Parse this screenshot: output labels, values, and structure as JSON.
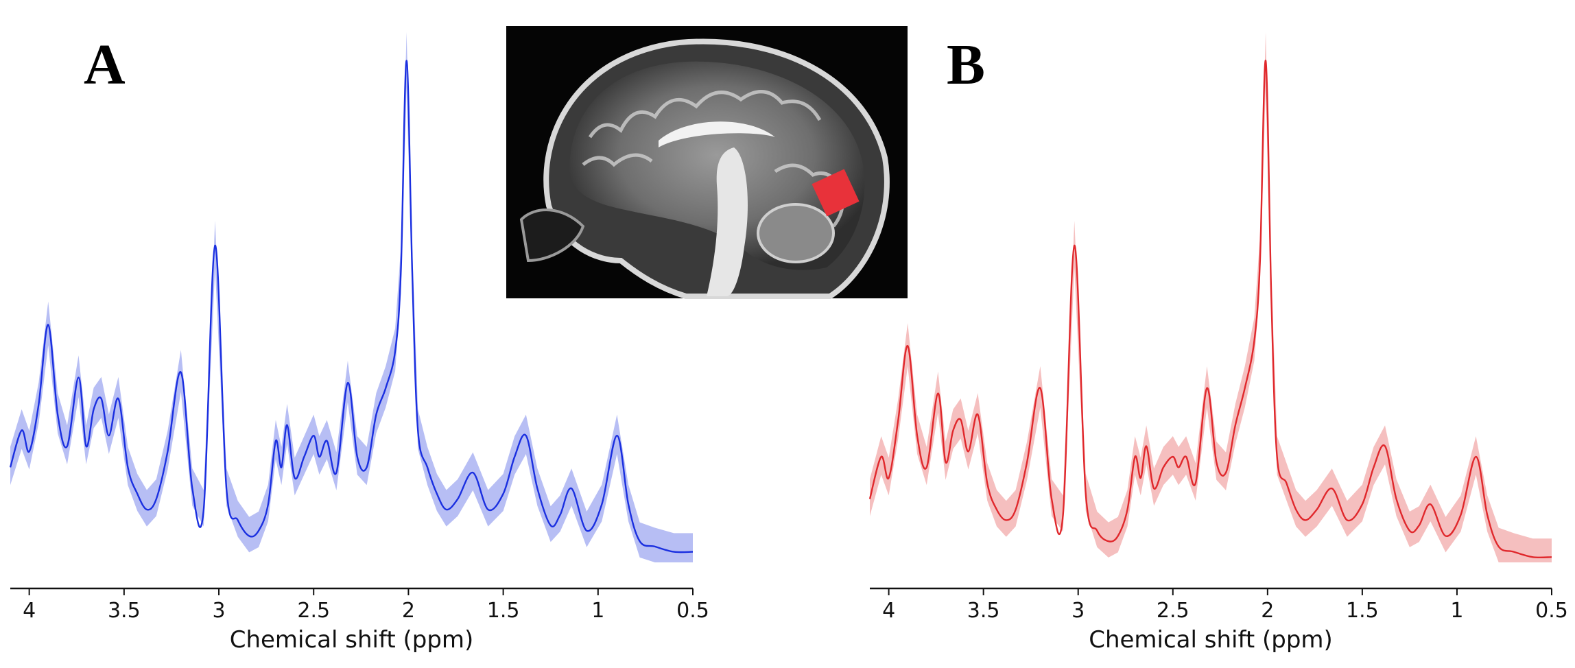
{
  "figure": {
    "panel_labels": [
      "A",
      "B"
    ],
    "inset_description_icon": "sagittal-brain-mri-icon",
    "voxel_color": "#e8323a"
  },
  "chart_data": [
    {
      "type": "line",
      "panel": "A",
      "color": "#1a2fe0",
      "band_color": "#9fa8f0",
      "xlabel": "Chemical shift (ppm)",
      "ylabel": "",
      "xlim": [
        4.1,
        0.5
      ],
      "x_reversed": true,
      "ylim": [
        0,
        1
      ],
      "xticks": [
        4,
        3.5,
        3,
        2.5,
        2,
        1.5,
        1,
        0.5
      ],
      "xtick_labels": [
        "4",
        "3.5",
        "3",
        "2.5",
        "2",
        "1.5",
        "1",
        "0.5"
      ],
      "grid": false,
      "series": [
        {
          "x": [
            4.1,
            4.04,
            4.0,
            3.95,
            3.9,
            3.85,
            3.8,
            3.74,
            3.7,
            3.66,
            3.62,
            3.58,
            3.53,
            3.48,
            3.43,
            3.38,
            3.33,
            3.27,
            3.2,
            3.14,
            3.08,
            3.02,
            2.96,
            2.9,
            2.84,
            2.79,
            2.74,
            2.7,
            2.67,
            2.64,
            2.6,
            2.55,
            2.5,
            2.47,
            2.43,
            2.38,
            2.32,
            2.27,
            2.22,
            2.17,
            2.12,
            2.07,
            2.04,
            2.01,
            1.98,
            1.95,
            1.9,
            1.85,
            1.8,
            1.74,
            1.66,
            1.58,
            1.5,
            1.44,
            1.38,
            1.32,
            1.25,
            1.2,
            1.14,
            1.06,
            0.98,
            0.9,
            0.84,
            0.78,
            0.7,
            0.6,
            0.5
          ],
          "y": [
            0.18,
            0.25,
            0.21,
            0.3,
            0.45,
            0.28,
            0.22,
            0.35,
            0.22,
            0.29,
            0.31,
            0.24,
            0.31,
            0.18,
            0.13,
            0.1,
            0.12,
            0.21,
            0.36,
            0.14,
            0.1,
            0.6,
            0.14,
            0.08,
            0.05,
            0.06,
            0.11,
            0.23,
            0.18,
            0.26,
            0.16,
            0.2,
            0.24,
            0.2,
            0.23,
            0.17,
            0.34,
            0.2,
            0.18,
            0.28,
            0.33,
            0.4,
            0.55,
            0.95,
            0.55,
            0.25,
            0.18,
            0.13,
            0.1,
            0.12,
            0.17,
            0.1,
            0.13,
            0.2,
            0.24,
            0.14,
            0.07,
            0.09,
            0.14,
            0.06,
            0.11,
            0.24,
            0.11,
            0.04,
            0.03,
            0.02,
            0.02
          ]
        }
      ]
    },
    {
      "type": "line",
      "panel": "B",
      "color": "#e0282c",
      "band_color": "#f2aaaa",
      "xlabel": "Chemical shift (ppm)",
      "ylabel": "",
      "xlim": [
        4.1,
        0.5
      ],
      "x_reversed": true,
      "ylim": [
        0,
        1
      ],
      "xticks": [
        4,
        3.5,
        3,
        2.5,
        2,
        1.5,
        1,
        0.5
      ],
      "xtick_labels": [
        "4",
        "3.5",
        "3",
        "2.5",
        "2",
        "1.5",
        "1",
        "0.5"
      ],
      "grid": false,
      "series": [
        {
          "x": [
            4.1,
            4.04,
            4.0,
            3.95,
            3.9,
            3.85,
            3.8,
            3.74,
            3.7,
            3.66,
            3.62,
            3.58,
            3.53,
            3.48,
            3.43,
            3.38,
            3.33,
            3.27,
            3.2,
            3.14,
            3.08,
            3.02,
            2.96,
            2.9,
            2.84,
            2.79,
            2.74,
            2.7,
            2.67,
            2.64,
            2.6,
            2.55,
            2.5,
            2.47,
            2.43,
            2.38,
            2.32,
            2.27,
            2.22,
            2.17,
            2.12,
            2.07,
            2.04,
            2.01,
            1.98,
            1.95,
            1.9,
            1.85,
            1.8,
            1.74,
            1.66,
            1.58,
            1.5,
            1.44,
            1.38,
            1.32,
            1.25,
            1.2,
            1.14,
            1.06,
            0.98,
            0.9,
            0.84,
            0.78,
            0.7,
            0.6,
            0.5
          ],
          "y": [
            0.12,
            0.2,
            0.16,
            0.27,
            0.41,
            0.24,
            0.18,
            0.32,
            0.19,
            0.25,
            0.27,
            0.21,
            0.28,
            0.15,
            0.1,
            0.08,
            0.1,
            0.19,
            0.33,
            0.12,
            0.09,
            0.6,
            0.13,
            0.06,
            0.04,
            0.05,
            0.1,
            0.2,
            0.16,
            0.22,
            0.14,
            0.18,
            0.2,
            0.18,
            0.2,
            0.15,
            0.33,
            0.19,
            0.17,
            0.26,
            0.33,
            0.42,
            0.57,
            0.95,
            0.5,
            0.2,
            0.15,
            0.1,
            0.08,
            0.1,
            0.14,
            0.08,
            0.11,
            0.18,
            0.22,
            0.12,
            0.06,
            0.07,
            0.11,
            0.05,
            0.09,
            0.2,
            0.09,
            0.03,
            0.02,
            0.01,
            0.01
          ]
        }
      ]
    }
  ]
}
